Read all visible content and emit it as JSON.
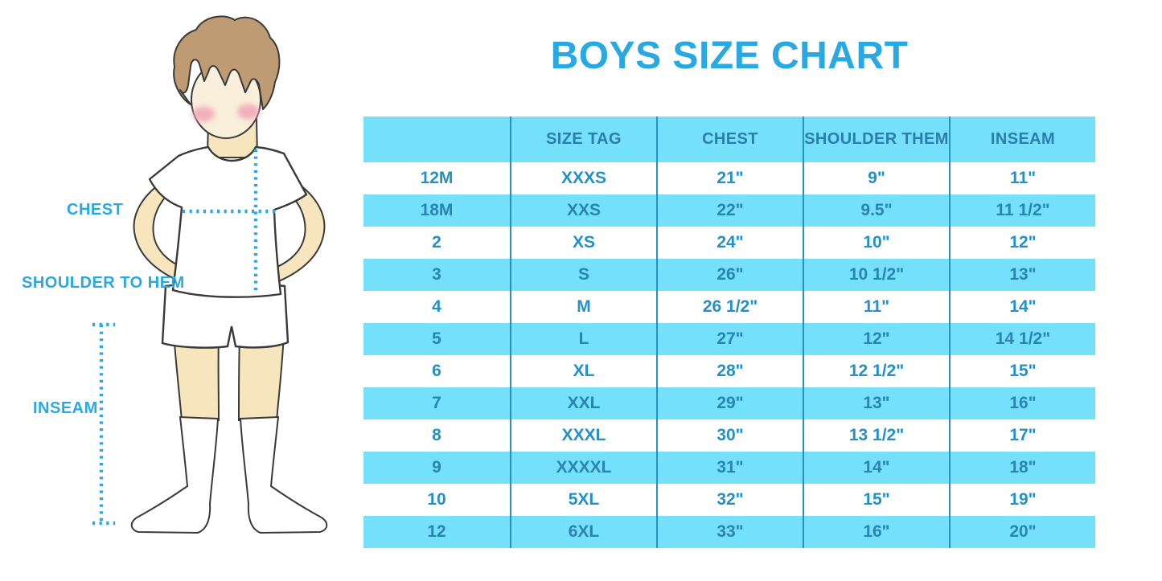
{
  "title": "BOYS SIZE CHART",
  "figure": {
    "description": "outlined illustration of a boy in white t-shirt, shorts and knee socks with dotted measurement guides",
    "labels": {
      "chest": "CHEST",
      "shoulder_to_hem": "SHOULDER TO HEM",
      "inseam": "INSEAM"
    }
  },
  "colors": {
    "accent_blue": "#29A9E2",
    "table_stripe_blue": "#74E0FB",
    "table_divider_blue": "#2492C4",
    "header_text_blue": "#2A7FA9",
    "cell_text_blue": "#2191C8",
    "stripe_cell_text_blue": "#2A84B2",
    "dotted_line_blue": "#29ABE2",
    "skin": "#F7E5BD",
    "face": "#F9EFDA",
    "hair": "#BE9B72",
    "blush": "#F0A6B6",
    "outline": "#3A3A3A"
  },
  "chart_data": {
    "type": "table",
    "title": "BOYS SIZE CHART",
    "columns": [
      "",
      "SIZE TAG",
      "CHEST",
      "SHOULDER THEM",
      "INSEAM"
    ],
    "rows": [
      [
        "12M",
        "XXXS",
        "21\"",
        "9\"",
        "11\""
      ],
      [
        "18M",
        "XXS",
        "22\"",
        "9.5\"",
        "11 1/2\""
      ],
      [
        "2",
        "XS",
        "24\"",
        "10\"",
        "12\""
      ],
      [
        "3",
        "S",
        "26\"",
        "10 1/2\"",
        "13\""
      ],
      [
        "4",
        "M",
        "26 1/2\"",
        "11\"",
        "14\""
      ],
      [
        "5",
        "L",
        "27\"",
        "12\"",
        "14 1/2\""
      ],
      [
        "6",
        "XL",
        "28\"",
        "12 1/2\"",
        "15\""
      ],
      [
        "7",
        "XXL",
        "29\"",
        "13\"",
        "16\""
      ],
      [
        "8",
        "XXXL",
        "30\"",
        "13 1/2\"",
        "17\""
      ],
      [
        "9",
        "XXXXL",
        "31\"",
        "14\"",
        "18\""
      ],
      [
        "10",
        "5XL",
        "32\"",
        "15\"",
        "19\""
      ],
      [
        "12",
        "6XL",
        "33\"",
        "16\"",
        "20\""
      ]
    ],
    "stripe_pattern": "header and every second data row filled light blue, others white",
    "legend_position": "none",
    "grid": "vertical dividers only"
  }
}
